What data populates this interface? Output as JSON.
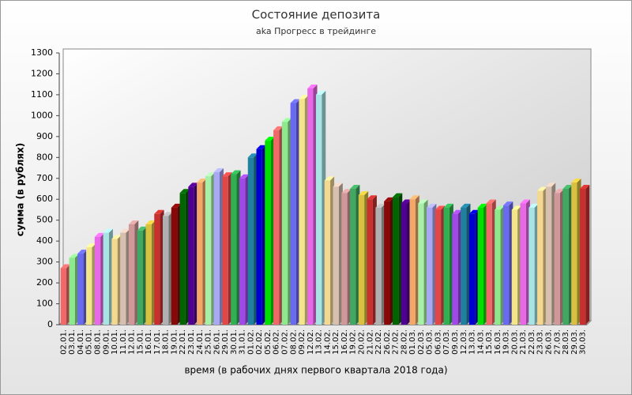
{
  "chart_data": {
    "type": "bar3d",
    "title": "Состояние депозита",
    "subtitle": "aka Прогресс в трейдинге",
    "y_label": "сумма (в рублях)",
    "x_label": "время (в рабочих днях первого квартала 2018 года)",
    "categories": [
      "02.01.",
      "03.01.",
      "04.01.",
      "05.01.",
      "08.01.",
      "09.01.",
      "10.01.",
      "11.01.",
      "12.01.",
      "15.01.",
      "16.01.",
      "17.01.",
      "18.01.",
      "19.01.",
      "22.01.",
      "23.01.",
      "24.01.",
      "25.01.",
      "26.01.",
      "29.01.",
      "30.01.",
      "31.01.",
      "01.02.",
      "02.02.",
      "05.02.",
      "06.02.",
      "07.02.",
      "08.02.",
      "09.02.",
      "12.02.",
      "13.02.",
      "14.02.",
      "15.02.",
      "16.02.",
      "19.02.",
      "20.02.",
      "21.02.",
      "22.02.",
      "26.02.",
      "27.02.",
      "28.02.",
      "01.03.",
      "02.03.",
      "05.03.",
      "06.03.",
      "07.03.",
      "09.03.",
      "12.03.",
      "13.03.",
      "14.03.",
      "15.03.",
      "16.03.",
      "19.03.",
      "20.03.",
      "21.03.",
      "22.03.",
      "23.03.",
      "26.03.",
      "27.03.",
      "28.03.",
      "29.03.",
      "30.03."
    ],
    "values": [
      270,
      320,
      340,
      370,
      420,
      440,
      410,
      440,
      480,
      450,
      480,
      530,
      520,
      560,
      630,
      660,
      680,
      710,
      730,
      710,
      720,
      700,
      800,
      840,
      880,
      930,
      970,
      1060,
      1080,
      1130,
      1100,
      690,
      660,
      630,
      650,
      620,
      600,
      560,
      590,
      610,
      580,
      600,
      580,
      560,
      550,
      560,
      530,
      560,
      530,
      560,
      580,
      550,
      570,
      550,
      580,
      560,
      640,
      660,
      630,
      650,
      680,
      650
    ],
    "palette": [
      "#f06868",
      "#8ee88e",
      "#6a6af0",
      "#f4e48a",
      "#e868e8",
      "#a8e4e4",
      "#f4d890",
      "#d8c0b0",
      "#d09898",
      "#40a860",
      "#d8c040",
      "#c83030",
      "#b0b0b0",
      "#880808",
      "#006400",
      "#500090",
      "#f4a868",
      "#a8f0a8",
      "#a8a8f4",
      "#e04848",
      "#30b050",
      "#a048e8",
      "#2080a0",
      "#0000d0",
      "#00e000"
    ],
    "ylim": [
      0,
      1300
    ],
    "yticks": [
      0,
      100,
      200,
      300,
      400,
      500,
      600,
      700,
      800,
      900,
      1000,
      1100,
      1200,
      1300
    ],
    "grid": false
  }
}
